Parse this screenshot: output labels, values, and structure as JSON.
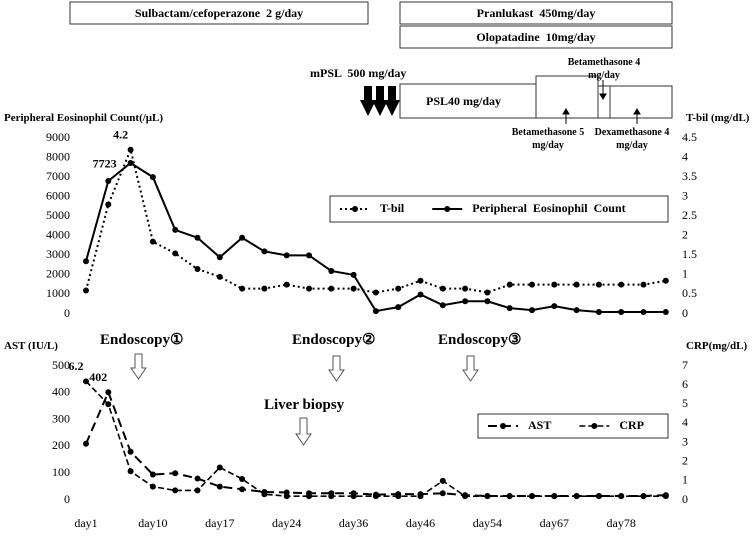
{
  "chart_data": [
    {
      "type": "line",
      "y_label": "Peripheral Eosinophil Count(/μL)",
      "y2_label": "T-bil (mg/dL)",
      "ylim": [
        0,
        9000
      ],
      "yticks": [
        0,
        1000,
        2000,
        3000,
        4000,
        5000,
        6000,
        7000,
        8000,
        9000
      ],
      "y2lim": [
        0,
        4.5
      ],
      "y2ticks": [
        0,
        0.5,
        1,
        1.5,
        2,
        2.5,
        3,
        3.5,
        4,
        4.5
      ],
      "legend": "upper right",
      "series": [
        {
          "name": "T-bil",
          "axis": "y2",
          "color": "#000000",
          "style": "dotted",
          "values": [
            0.6,
            2.8,
            4.2,
            1.85,
            1.55,
            1.15,
            0.95,
            0.65,
            0.65,
            0.75,
            0.65,
            0.65,
            0.65,
            0.55,
            0.65,
            0.85,
            0.65,
            0.65,
            0.55,
            0.75,
            0.75,
            0.75,
            0.75,
            0.75,
            0.75,
            0.75,
            0.85
          ],
          "value_labels": [
            null,
            null,
            "4.2",
            null,
            null,
            null,
            null,
            null,
            null,
            null,
            null,
            null,
            null,
            null,
            null,
            null,
            null,
            null,
            null,
            null,
            null,
            null,
            null,
            null,
            null,
            null,
            null
          ]
        },
        {
          "name": "Peripheral  Eosinophil  Count",
          "color": "#000000",
          "style": "solid",
          "values": [
            2700,
            6800,
            7723,
            7000,
            4300,
            3900,
            2900,
            3900,
            3200,
            3000,
            3000,
            2200,
            2000,
            150,
            350,
            1000,
            450,
            650,
            650,
            300,
            200,
            400,
            200,
            100,
            100,
            100,
            100
          ],
          "value_labels": [
            null,
            null,
            "7723",
            null,
            null,
            null,
            null,
            null,
            null,
            null,
            null,
            null,
            null,
            null,
            null,
            null,
            null,
            null,
            null,
            null,
            null,
            null,
            null,
            null,
            null,
            null,
            null
          ]
        }
      ],
      "annotations": [
        "Sulbactam/cefoperazone  2 g/day",
        "Pranlukast  450mg/day",
        "Olopatadine  10mg/day",
        "mPSL  500 mg/day",
        "PSL40 mg/day",
        "Betamethasone 4 mg/day",
        "Betamethasone 5 mg/day",
        "Dexamethasone 4 mg/day"
      ]
    },
    {
      "type": "line",
      "y_label": "AST (IU/L)",
      "y2_label": "CRP(mg/dL)",
      "categories": [
        "day1",
        null,
        null,
        "day10",
        null,
        null,
        "day17",
        null,
        null,
        "day24",
        null,
        null,
        "day36",
        null,
        null,
        "day46",
        null,
        null,
        "day54",
        null,
        null,
        "day67",
        null,
        null,
        "day78",
        null,
        null
      ],
      "ylim": [
        0,
        500
      ],
      "yticks": [
        0,
        100,
        200,
        300,
        400,
        500
      ],
      "y2lim": [
        0,
        7
      ],
      "y2ticks": [
        0,
        1,
        2,
        3,
        4,
        5,
        6,
        7
      ],
      "legend": "upper right",
      "series": [
        {
          "name": "AST",
          "color": "#000000",
          "style": "dashed",
          "values": [
            210,
            402,
            180,
            95,
            100,
            80,
            50,
            40,
            30,
            28,
            25,
            25,
            25,
            20,
            22,
            22,
            25,
            18,
            15,
            15,
            15,
            15,
            15,
            15,
            15,
            15,
            18
          ],
          "value_labels": [
            null,
            "402",
            null,
            null,
            null,
            null,
            null,
            null,
            null,
            null,
            null,
            null,
            null,
            null,
            null,
            null,
            null,
            null,
            null,
            null,
            null,
            null,
            null,
            null,
            null,
            null,
            null
          ]
        },
        {
          "name": "CRP",
          "axis": "y2",
          "color": "#000000",
          "style": "dashdot",
          "values": [
            6.2,
            5.0,
            1.5,
            0.7,
            0.5,
            0.5,
            1.7,
            1.1,
            0.3,
            0.2,
            0.2,
            0.2,
            0.2,
            0.2,
            0.2,
            0.2,
            1.0,
            0.2,
            0.2,
            0.2,
            0.2,
            0.2,
            0.2,
            0.2,
            0.2,
            0.2,
            0.2
          ],
          "value_labels": [
            "6.2",
            null,
            null,
            null,
            null,
            null,
            null,
            null,
            null,
            null,
            null,
            null,
            null,
            null,
            null,
            null,
            null,
            null,
            null,
            null,
            null,
            null,
            null,
            null,
            null,
            null,
            null
          ]
        }
      ],
      "annotations": [
        "Endoscopy①",
        "Endoscopy②",
        "Endoscopy③",
        "Liver biopsy"
      ]
    }
  ]
}
